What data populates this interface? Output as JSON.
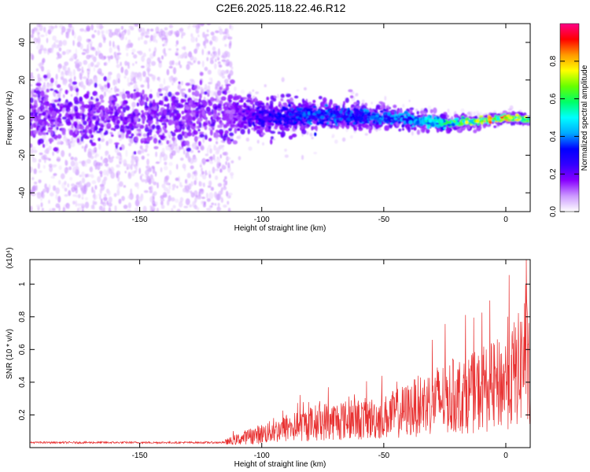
{
  "title": "C2E6.2025.118.22.46.R12",
  "chart_data": [
    {
      "type": "heatmap",
      "title": "C2E6.2025.118.22.46.R12",
      "xlabel": "Height of straight line (km)",
      "ylabel": "Frequency (Hz)",
      "xlim": [
        -195,
        10
      ],
      "ylim": [
        -50,
        50
      ],
      "xticks": [
        -150,
        -100,
        -50,
        0
      ],
      "yticks": [
        -40,
        -20,
        0,
        20,
        40
      ],
      "grid": false,
      "colorbar": {
        "label": "Normalized spectral amplitude",
        "range": [
          0,
          1
        ],
        "ticks": [
          0.0,
          0.2,
          0.4,
          0.6,
          0.8
        ],
        "colors": [
          "#ffffff",
          "#cc99ff",
          "#8800ff",
          "#3300ff",
          "#0000ff",
          "#00aaff",
          "#00ffff",
          "#00ff66",
          "#66ff00",
          "#ffff00",
          "#ff9900",
          "#ff0000",
          "#ff0088"
        ]
      },
      "ridge": [
        {
          "x": -190,
          "f": 1,
          "amp": 0.1
        },
        {
          "x": -150,
          "f": 1,
          "amp": 0.12
        },
        {
          "x": -115,
          "f": 1,
          "amp": 0.15
        },
        {
          "x": -100,
          "f": 0,
          "amp": 0.3
        },
        {
          "x": -80,
          "f": 1,
          "amp": 0.4
        },
        {
          "x": -60,
          "f": 1,
          "amp": 0.4
        },
        {
          "x": -40,
          "f": -1,
          "amp": 0.45
        },
        {
          "x": -25,
          "f": -3,
          "amp": 0.6
        },
        {
          "x": -10,
          "f": -2,
          "amp": 0.8
        },
        {
          "x": 0,
          "f": 0,
          "amp": 0.9
        },
        {
          "x": 8,
          "f": -1,
          "amp": 0.7
        }
      ]
    },
    {
      "type": "line",
      "xlabel": "Height of straight line (km)",
      "ylabel": "SNR (10 * v/v)",
      "yscale_label": "(x10⁴)",
      "xlim": [
        -195,
        10
      ],
      "ylim": [
        0,
        1.15
      ],
      "xticks": [
        -150,
        -100,
        -50,
        0
      ],
      "yticks": [
        0.2,
        0.4,
        0.6,
        0.8,
        1
      ],
      "ytick_labels": [
        "0.2",
        "0.4",
        "0.6",
        "0.8",
        "1"
      ],
      "color": "#e83030",
      "envelope": [
        {
          "x": -195,
          "y": 0.03
        },
        {
          "x": -130,
          "y": 0.03
        },
        {
          "x": -115,
          "y": 0.05
        },
        {
          "x": -105,
          "y": 0.12
        },
        {
          "x": -90,
          "y": 0.2
        },
        {
          "x": -75,
          "y": 0.28
        },
        {
          "x": -60,
          "y": 0.3
        },
        {
          "x": -50,
          "y": 0.32
        },
        {
          "x": -40,
          "y": 0.4
        },
        {
          "x": -30,
          "y": 0.5
        },
        {
          "x": -20,
          "y": 0.55
        },
        {
          "x": -10,
          "y": 0.6
        },
        {
          "x": 0,
          "y": 0.7
        },
        {
          "x": 6,
          "y": 0.85
        },
        {
          "x": 8,
          "y": 1.1
        },
        {
          "x": 10,
          "y": 0.5
        }
      ]
    }
  ]
}
